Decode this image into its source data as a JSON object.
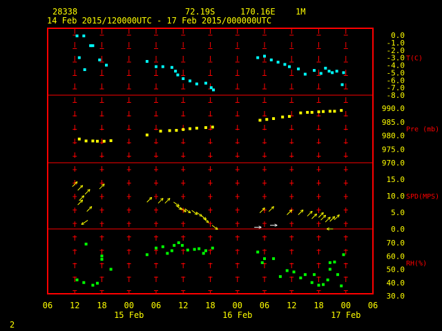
{
  "header": {
    "station_id": "28338",
    "latitude": "72.19S",
    "longitude": "170.16E",
    "interval": "1M",
    "time_range": "14 Feb 2015/120000UTC - 17 Feb 2015/000000UTC"
  },
  "footer": {
    "page_number": "2"
  },
  "colors": {
    "frame": "#ff0000",
    "grid": "#ff0000",
    "axis_text": "#ffff00",
    "label_text": "#ff0000",
    "temperature": "#00ffff",
    "pressure": "#ffff00",
    "wind": "#ffff00",
    "wind_calm": "#ffffff",
    "humidity": "#00ff00"
  },
  "chart_data": {
    "type": "scatter",
    "x_axis": {
      "unit": "hours since 14 Feb 2015 06 UTC",
      "range": [
        0,
        72
      ],
      "tick_labels": [
        "06",
        "12",
        "18",
        "00",
        "06",
        "12",
        "18",
        "00",
        "06",
        "12",
        "18",
        "00",
        "06"
      ],
      "date_labels": [
        {
          "text": "15 Feb",
          "at": 18
        },
        {
          "text": "16 Feb",
          "at": 42
        },
        {
          "text": "17 Feb",
          "at": 66
        }
      ]
    },
    "panels": [
      {
        "key": "temperature",
        "label": "T(C)",
        "ylim": [
          -8.0,
          0.0
        ],
        "ticks": [
          "0.0",
          "-1.0",
          "-2.0",
          "-3.0",
          "-4.0",
          "-5.0",
          "-6.0",
          "-7.0",
          "-8.0"
        ],
        "grid_top": false,
        "points": [
          [
            6.5,
            -0.1
          ],
          [
            8.0,
            -0.1
          ],
          [
            9.5,
            -1.4
          ],
          [
            10.0,
            -1.4
          ],
          [
            7.0,
            -3.0
          ],
          [
            8.2,
            -4.6
          ],
          [
            11.5,
            -3.3
          ],
          [
            13.0,
            -4.0
          ],
          [
            22.0,
            -3.5
          ],
          [
            24.0,
            -4.2
          ],
          [
            25.5,
            -4.2
          ],
          [
            27.5,
            -4.3
          ],
          [
            28.3,
            -4.8
          ],
          [
            28.8,
            -5.3
          ],
          [
            30.0,
            -5.8
          ],
          [
            31.5,
            -6.1
          ],
          [
            33.0,
            -6.5
          ],
          [
            35.0,
            -6.4
          ],
          [
            36.2,
            -7.0
          ],
          [
            36.7,
            -7.3
          ],
          [
            46.5,
            -3.0
          ],
          [
            48.0,
            -2.8
          ],
          [
            49.5,
            -3.3
          ],
          [
            51.0,
            -3.6
          ],
          [
            52.5,
            -3.9
          ],
          [
            53.5,
            -4.2
          ],
          [
            55.5,
            -4.5
          ],
          [
            57.0,
            -5.2
          ],
          [
            59.0,
            -4.7
          ],
          [
            60.5,
            -5.1
          ],
          [
            61.5,
            -4.4
          ],
          [
            62.3,
            -4.8
          ],
          [
            63.0,
            -5.0
          ],
          [
            64.0,
            -4.8
          ],
          [
            65.5,
            -5.0
          ],
          [
            65.2,
            -6.6
          ]
        ]
      },
      {
        "key": "pressure",
        "label": "Pre (mb)",
        "ylim": [
          970.0,
          990.0
        ],
        "ticks": [
          "990.0",
          "985.0",
          "980.0",
          "975.0",
          "970.0"
        ],
        "grid_top": true,
        "points": [
          [
            7.0,
            978.7
          ],
          [
            8.5,
            978.0
          ],
          [
            10.0,
            978.0
          ],
          [
            11.0,
            977.9
          ],
          [
            12.5,
            977.9
          ],
          [
            14.0,
            978.1
          ],
          [
            22.0,
            980.2
          ],
          [
            25.0,
            981.6
          ],
          [
            27.0,
            981.8
          ],
          [
            28.5,
            981.9
          ],
          [
            30.0,
            982.2
          ],
          [
            31.5,
            982.5
          ],
          [
            33.0,
            982.7
          ],
          [
            35.0,
            982.9
          ],
          [
            36.5,
            983.1
          ],
          [
            47.0,
            985.6
          ],
          [
            48.5,
            985.9
          ],
          [
            50.0,
            986.2
          ],
          [
            52.0,
            986.8
          ],
          [
            53.5,
            987.0
          ],
          [
            56.0,
            988.3
          ],
          [
            57.5,
            988.5
          ],
          [
            58.5,
            988.5
          ],
          [
            60.0,
            988.7
          ],
          [
            61.0,
            988.8
          ],
          [
            62.5,
            988.9
          ],
          [
            63.5,
            988.9
          ],
          [
            65.0,
            989.2
          ]
        ]
      },
      {
        "key": "wind",
        "label": "SPD(MPS)",
        "ylim": [
          0.0,
          15.0
        ],
        "ticks": [
          "15.0",
          "10.0",
          "5.0",
          "0.0"
        ],
        "grid_top": true,
        "arrows": [
          [
            6.0,
            13.5,
            1
          ],
          [
            8.8,
            11.2,
            1
          ],
          [
            7.2,
            12.4,
            1
          ],
          [
            7.5,
            9.3,
            1
          ],
          [
            7.2,
            8.0,
            1
          ],
          [
            9.2,
            6.0,
            1
          ],
          [
            8.2,
            2.0,
            0
          ],
          [
            12.0,
            12.8,
            1
          ],
          [
            22.5,
            8.8,
            1
          ],
          [
            25.0,
            8.5,
            1
          ],
          [
            26.5,
            8.5,
            1
          ],
          [
            28.5,
            7.5,
            0
          ],
          [
            29.0,
            6.5,
            0
          ],
          [
            30.0,
            5.8,
            0
          ],
          [
            31.0,
            5.5,
            0
          ],
          [
            32.5,
            5.0,
            0
          ],
          [
            33.5,
            4.5,
            0
          ],
          [
            34.5,
            3.5,
            0
          ],
          [
            35.0,
            2.6,
            0
          ],
          [
            37.0,
            0.5,
            0
          ],
          [
            46.5,
            0.5,
            0
          ],
          [
            50.0,
            1.1,
            0
          ],
          [
            47.5,
            5.6,
            1
          ],
          [
            49.5,
            6.0,
            1
          ],
          [
            53.5,
            5.0,
            1
          ],
          [
            56.0,
            5.0,
            1
          ],
          [
            58.0,
            4.6,
            1
          ],
          [
            59.0,
            3.8,
            1
          ],
          [
            60.5,
            4.2,
            1
          ],
          [
            61.0,
            3.4,
            1
          ],
          [
            62.0,
            2.8,
            1
          ],
          [
            63.0,
            3.0,
            1
          ],
          [
            64.0,
            3.5,
            1
          ],
          [
            62.5,
            0.0,
            0
          ]
        ]
      },
      {
        "key": "humidity",
        "label": "RH(%)",
        "ylim": [
          30.0,
          70.0
        ],
        "ticks": [
          "70.0",
          "60.0",
          "50.0",
          "40.0",
          "30.0"
        ],
        "grid_top": true,
        "points": [
          [
            6.5,
            42.0
          ],
          [
            8.0,
            40.0
          ],
          [
            10.0,
            38.0
          ],
          [
            11.0,
            39.5
          ],
          [
            12.0,
            57.5
          ],
          [
            14.0,
            50.0
          ],
          [
            8.5,
            69.0
          ],
          [
            12.0,
            60.0
          ],
          [
            22.0,
            61.0
          ],
          [
            24.0,
            66.0
          ],
          [
            25.5,
            67.0
          ],
          [
            26.5,
            62.0
          ],
          [
            27.5,
            64.0
          ],
          [
            28.0,
            68.0
          ],
          [
            29.0,
            70.0
          ],
          [
            29.8,
            68.0
          ],
          [
            31.0,
            64.5
          ],
          [
            32.5,
            65.0
          ],
          [
            33.5,
            65.5
          ],
          [
            34.5,
            62.0
          ],
          [
            35.0,
            64.0
          ],
          [
            36.5,
            66.0
          ],
          [
            46.5,
            63.0
          ],
          [
            47.5,
            55.0
          ],
          [
            48.0,
            58.0
          ],
          [
            50.0,
            58.0
          ],
          [
            51.5,
            44.5
          ],
          [
            53.0,
            49.0
          ],
          [
            54.5,
            48.0
          ],
          [
            56.0,
            43.5
          ],
          [
            57.0,
            46.0
          ],
          [
            58.5,
            40.0
          ],
          [
            59.0,
            46.0
          ],
          [
            60.0,
            38.0
          ],
          [
            61.0,
            38.5
          ],
          [
            62.0,
            42.0
          ],
          [
            62.5,
            50.0
          ],
          [
            63.5,
            55.5
          ],
          [
            64.2,
            46.0
          ],
          [
            65.0,
            37.5
          ],
          [
            65.5,
            61.0
          ],
          [
            62.5,
            55.0
          ]
        ]
      }
    ]
  }
}
